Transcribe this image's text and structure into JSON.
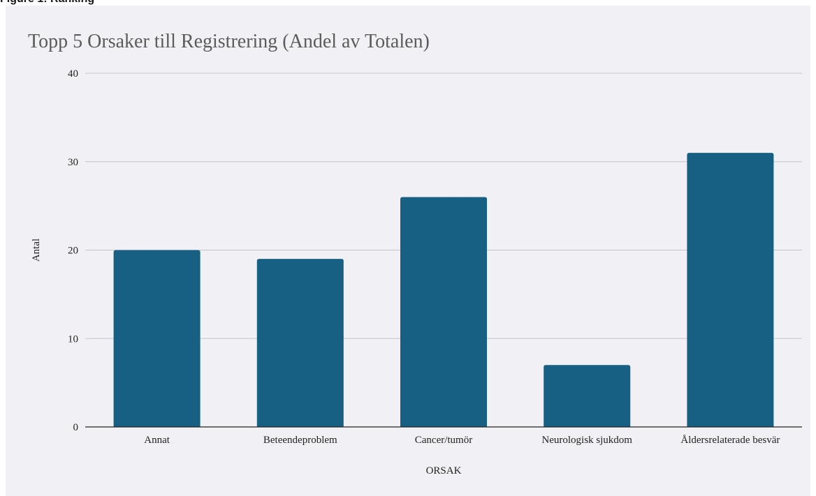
{
  "page": {
    "clipped_header_text": "Figure 1: Ranking"
  },
  "colors": {
    "card_background": "#f1f0f5",
    "bar": "#176083",
    "gridline": "#c4c4cc",
    "baseline": "#222222"
  },
  "chart_data": {
    "type": "bar",
    "title": "Topp 5 Orsaker till Registrering (Andel av Totalen)",
    "xlabel": "ORSAK",
    "ylabel": "Antal",
    "categories": [
      "Annat",
      "Beteendeproblem",
      "Cancer/tumör",
      "Neurologisk sjukdom",
      "Åldersrelaterade besvär"
    ],
    "values": [
      20,
      19,
      26,
      7,
      31
    ],
    "ylim": [
      0,
      40
    ],
    "yticks": [
      0,
      10,
      20,
      30,
      40
    ],
    "grid": true,
    "legend": "none"
  }
}
